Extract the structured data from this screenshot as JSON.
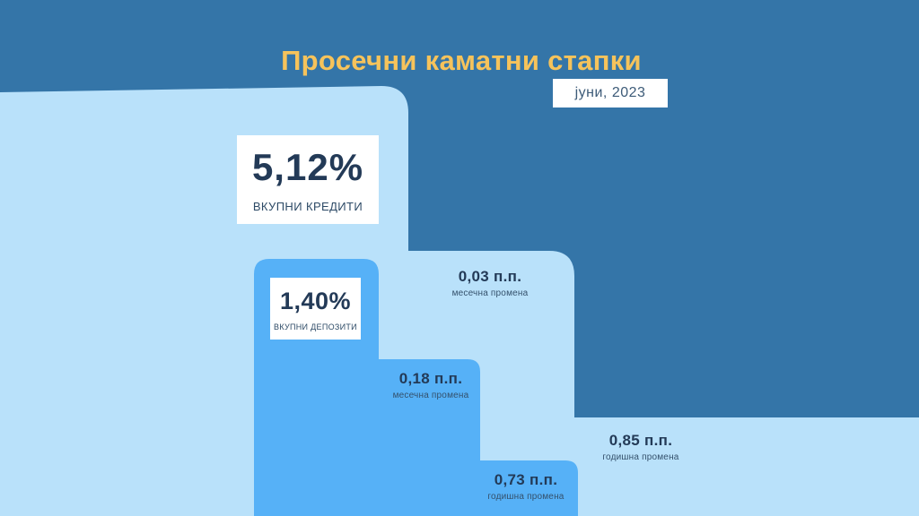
{
  "title": "Просечни каматни стапки",
  "date": "јуни, 2023",
  "colors": {
    "background": "#3475a8",
    "light_blue": "#b9e1fa",
    "mid_blue": "#56b1f7",
    "title": "#f6c35b",
    "dark_text": "#233a57"
  },
  "loans": {
    "value": "5,12%",
    "label": "ВКУПНИ КРЕДИТИ",
    "monthly": {
      "value": "0,03 п.п.",
      "label": "месечна промена"
    },
    "yearly": {
      "value": "0,85 п.п.",
      "label": "годишна промена"
    }
  },
  "deposits": {
    "value": "1,40%",
    "label": "ВКУПНИ ДЕПОЗИТИ",
    "monthly": {
      "value": "0,18 п.п.",
      "label": "месечна промена"
    },
    "yearly": {
      "value": "0,73 п.п.",
      "label": "годишна промена"
    }
  }
}
